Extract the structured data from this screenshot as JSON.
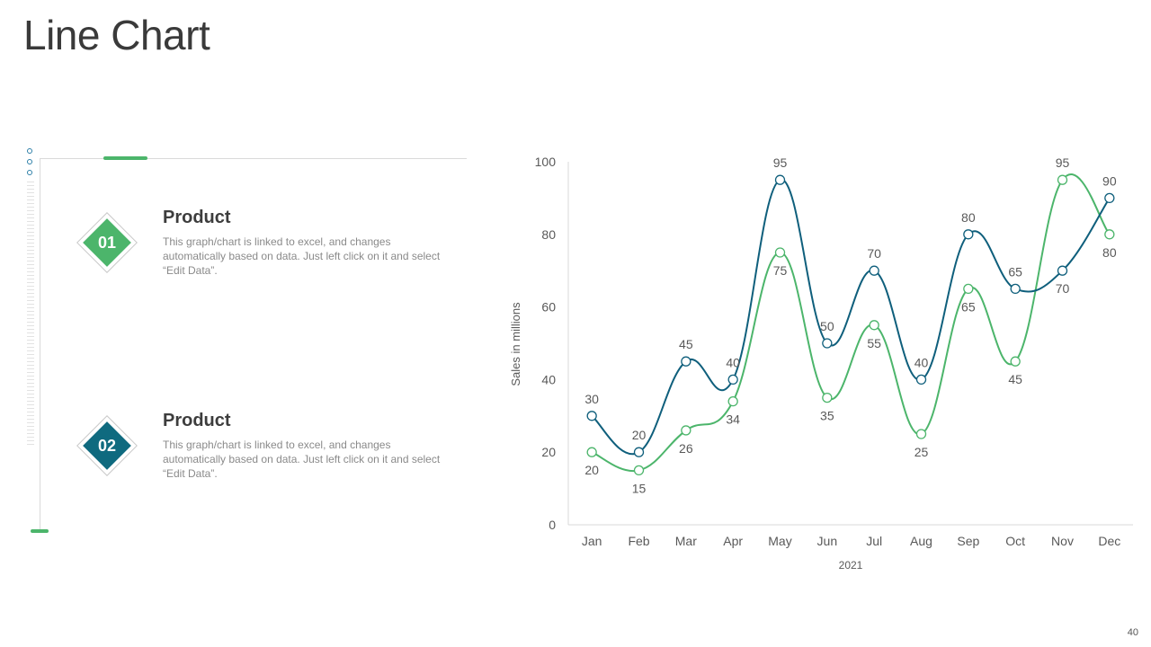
{
  "page": {
    "title": "Line Chart",
    "slide_number": "40"
  },
  "items": [
    {
      "number": "01",
      "title": "Product",
      "text": "This graph/chart is linked to excel, and changes automatically based on data. Just left click on it and select “Edit Data”.",
      "color": "#4cb56b"
    },
    {
      "number": "02",
      "title": "Product",
      "text": "This graph/chart is linked to excel, and changes automatically based on data. Just left click on it and select “Edit Data”.",
      "color": "#0f6a7f"
    }
  ],
  "chart_data": {
    "type": "line",
    "title": "",
    "xlabel": "2021",
    "ylabel": "Sales in millions",
    "categories": [
      "Jan",
      "Feb",
      "Mar",
      "Apr",
      "May",
      "Jun",
      "Jul",
      "Aug",
      "Sep",
      "Oct",
      "Nov",
      "Dec"
    ],
    "ylim": [
      0,
      100
    ],
    "yticks": [
      0,
      20,
      40,
      60,
      80,
      100
    ],
    "grid": false,
    "legend": "none",
    "series": [
      {
        "name": "Series 1",
        "color": "#0f5f7c",
        "values": [
          30,
          20,
          45,
          40,
          95,
          50,
          70,
          40,
          80,
          65,
          70,
          90
        ]
      },
      {
        "name": "Series 2",
        "color": "#4cb56b",
        "values": [
          20,
          15,
          26,
          34,
          75,
          35,
          55,
          25,
          65,
          45,
          95,
          80
        ]
      }
    ]
  }
}
